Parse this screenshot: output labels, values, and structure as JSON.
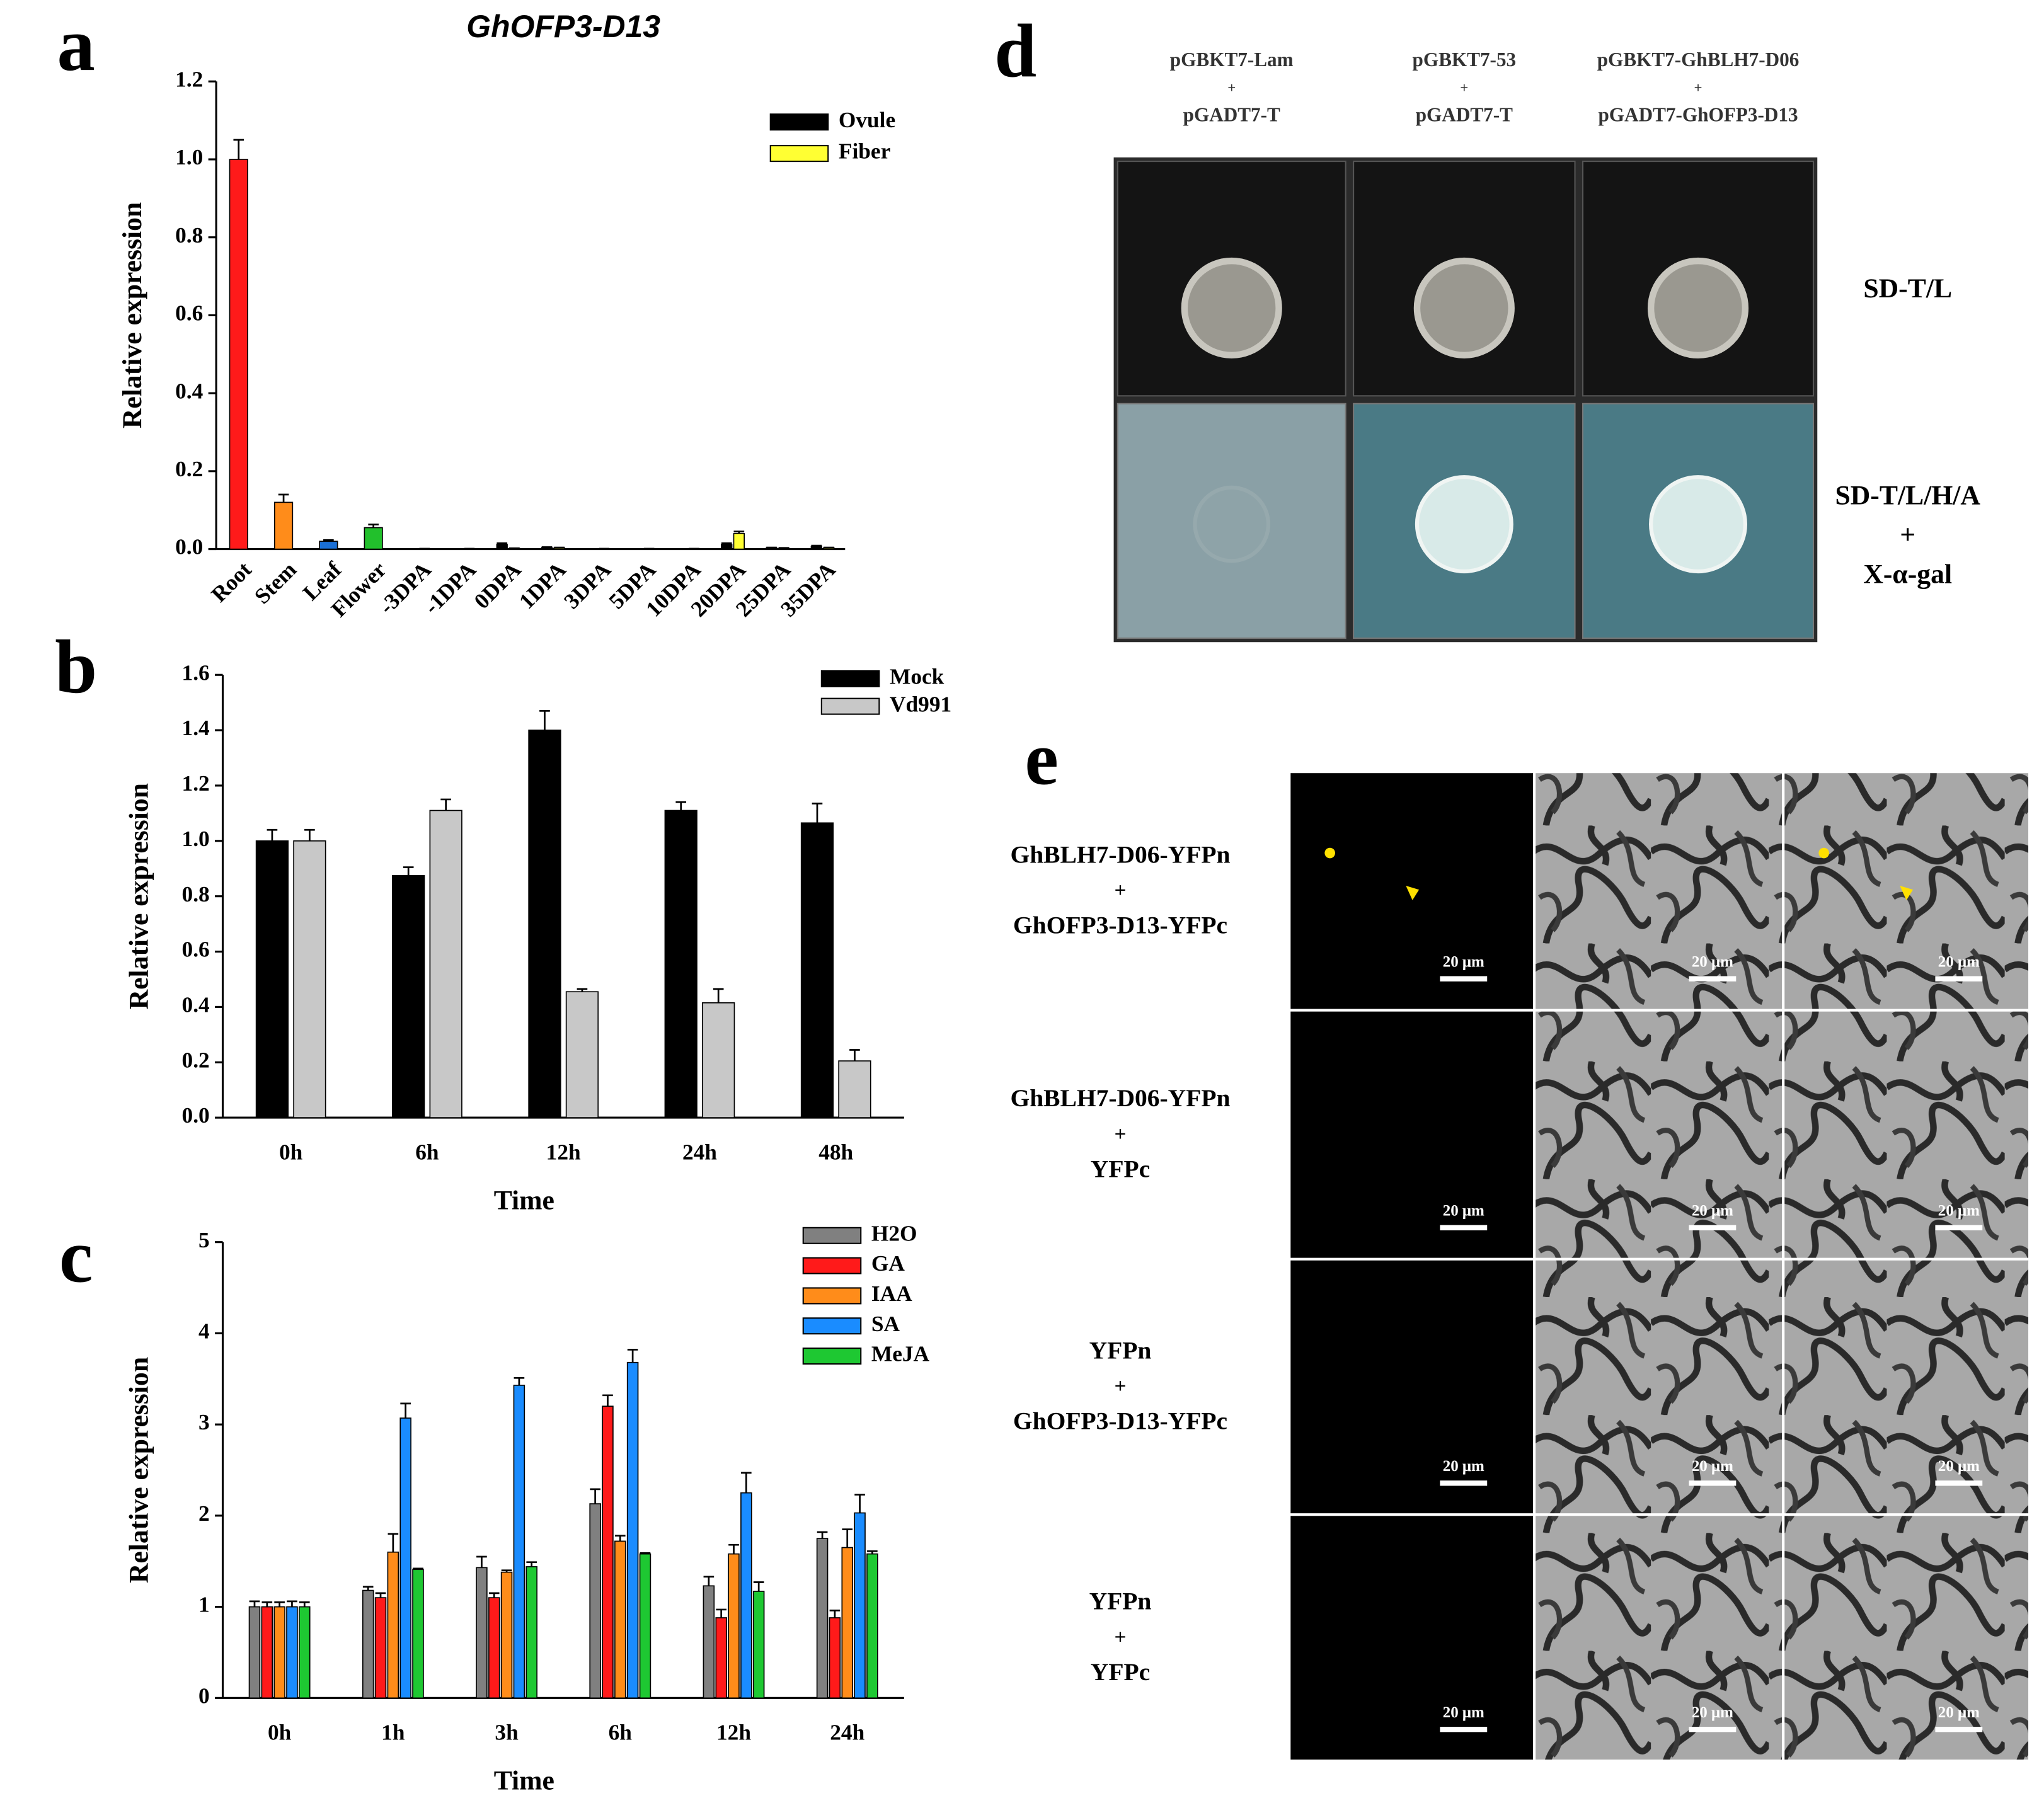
{
  "panel_labels": [
    "a",
    "b",
    "c",
    "d",
    "e"
  ],
  "chart_data": [
    {
      "type": "bar",
      "title": "GhOFP3-D13",
      "y_label": "Relative expression",
      "categories": [
        "Root",
        "Stem",
        "Leaf",
        "Flower",
        "-3DPA",
        "-1DPA",
        "0DPA",
        "1DPA",
        "3DPA",
        "5DPA",
        "10DPA",
        "20DPA",
        "25DPA",
        "35DPA"
      ],
      "values": [
        1.0,
        0.12,
        0.02,
        0.055,
        null,
        null,
        null,
        null,
        null,
        null,
        null,
        null,
        null,
        null
      ],
      "errors": [
        0.05,
        0.02,
        0.003,
        0.008,
        null,
        null,
        null,
        null,
        null,
        null,
        null,
        null,
        null,
        null
      ],
      "colors": [
        "#ff1a1a",
        "#ff8c1a",
        "#1a6fd6",
        "#22c02c"
      ],
      "series": [
        {
          "name": "Ovule",
          "color": "#000000",
          "values": [
            null,
            null,
            null,
            null,
            0,
            0,
            0.012,
            0.004,
            0,
            0,
            0,
            0.012,
            0.003,
            0.007
          ],
          "errors": [
            null,
            null,
            null,
            null,
            0,
            0,
            0.003,
            0.001,
            0,
            0,
            0,
            0.003,
            0.001,
            0.002
          ]
        },
        {
          "name": "Fiber",
          "color": "#ffff33",
          "values": [
            null,
            null,
            null,
            null,
            0.001,
            0.001,
            0.002,
            0.003,
            0.001,
            0.001,
            0.001,
            0.04,
            0.002,
            0.003
          ],
          "errors": [
            null,
            null,
            null,
            null,
            0,
            0,
            0,
            0.001,
            0,
            0,
            0,
            0.005,
            0.001,
            0.001
          ]
        }
      ],
      "ylim": [
        0,
        1.2
      ],
      "yticks": [
        {
          "value": 0,
          "label": "0.0"
        },
        0.2,
        0.4,
        0.6,
        0.8,
        {
          "value": 1,
          "label": "1.0"
        },
        1.2
      ]
    },
    {
      "type": "bar",
      "y_label": "Relative expression",
      "x_label": "Time",
      "categories": [
        "0h",
        "6h",
        "12h",
        "24h",
        "48h"
      ],
      "series": [
        {
          "name": "Mock",
          "color": "#000000",
          "values": [
            1.0,
            0.875,
            1.4,
            1.11,
            1.065
          ],
          "errors": [
            0.04,
            0.03,
            0.07,
            0.03,
            0.07
          ]
        },
        {
          "name": "Vd991",
          "color": "#c8c8c8",
          "values": [
            1.0,
            1.11,
            0.455,
            0.415,
            0.205
          ],
          "errors": [
            0.04,
            0.04,
            0.01,
            0.05,
            0.04
          ]
        }
      ],
      "ylim": [
        0,
        1.6
      ],
      "yticks": [
        {
          "value": 0,
          "label": "0.0"
        },
        0.2,
        0.4,
        0.6,
        0.8,
        {
          "value": 1,
          "label": "1.0"
        },
        1.2,
        1.4,
        1.6
      ]
    },
    {
      "type": "bar",
      "y_label": "Relative expression",
      "x_label": "Time",
      "categories": [
        "0h",
        "1h",
        "3h",
        "6h",
        "12h",
        "24h"
      ],
      "series": [
        {
          "name": "H2O",
          "color": "#808080",
          "values": [
            1,
            1.18,
            1.43,
            2.13,
            1.23,
            1.75
          ],
          "errors": [
            0.06,
            0.04,
            0.12,
            0.16,
            0.1,
            0.07
          ]
        },
        {
          "name": "GA",
          "color": "#ff1a1a",
          "values": [
            1,
            1.1,
            1.1,
            3.2,
            0.88,
            0.88
          ],
          "errors": [
            0.05,
            0.05,
            0.05,
            0.12,
            0.09,
            0.08
          ]
        },
        {
          "name": "IAA",
          "color": "#ff8c1a",
          "values": [
            1,
            1.6,
            1.38,
            1.72,
            1.58,
            1.65
          ],
          "errors": [
            0.05,
            0.2,
            0.02,
            0.06,
            0.1,
            0.2
          ]
        },
        {
          "name": "SA",
          "color": "#1a8cff",
          "values": [
            1,
            3.07,
            3.43,
            3.68,
            2.25,
            2.03
          ],
          "errors": [
            0.06,
            0.16,
            0.08,
            0.14,
            0.22,
            0.2
          ]
        },
        {
          "name": "MeJA",
          "color": "#1ec832",
          "values": [
            1,
            1.41,
            1.44,
            1.58,
            1.17,
            1.58
          ],
          "errors": [
            0.05,
            0.01,
            0.05,
            0.01,
            0.1,
            0.03
          ]
        }
      ],
      "ylim": [
        0,
        5
      ],
      "yticks": [
        0,
        1,
        2,
        3,
        4,
        5
      ]
    }
  ],
  "yeast_two_hybrid": {
    "columns": [
      [
        "pGBKT7-Lam",
        "+",
        "pGADT7-T"
      ],
      [
        "pGBKT7-53",
        "+",
        "pGADT7-T"
      ],
      [
        "pGBKT7-GhBLH7-D06",
        "+",
        "pGADT7-GhOFP3-D13"
      ]
    ],
    "rows": [
      [
        "SD-T/L"
      ],
      [
        "SD-T/L/H/A",
        "+",
        "X-α-gal"
      ]
    ]
  },
  "bifc": {
    "rows": [
      [
        "GhBLH7-D06-YFPn",
        "+",
        "GhOFP3-D13-YFPc"
      ],
      [
        "GhBLH7-D06-YFPn",
        "+",
        "YFPc"
      ],
      [
        "YFPn",
        "+",
        "GhOFP3-D13-YFPc"
      ],
      [
        "YFPn",
        "+",
        "YFPc"
      ]
    ],
    "scale_bar": "20 μm"
  }
}
